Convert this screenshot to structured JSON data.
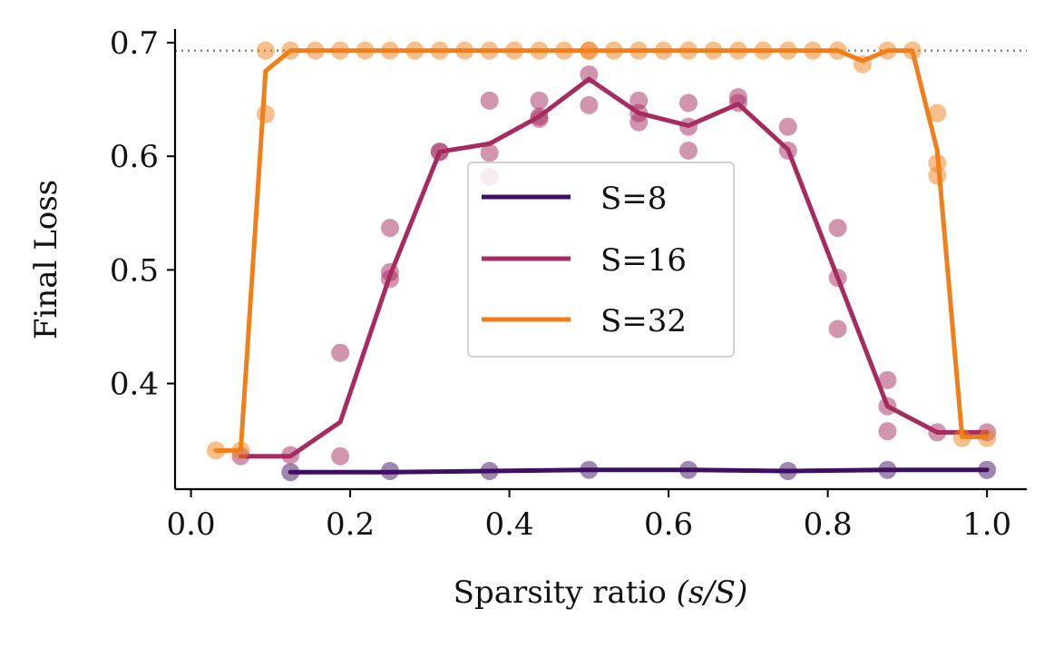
{
  "chart_data": {
    "type": "line",
    "title": "",
    "xlabel": "Sparsity ratio ",
    "xlabel_math": "(s/S)",
    "ylabel": "Final Loss",
    "xlim": [
      -0.02,
      1.05
    ],
    "ylim": [
      0.307,
      0.712
    ],
    "x_ticks": [
      0.0,
      0.2,
      0.4,
      0.6,
      0.8,
      1.0
    ],
    "x_tick_labels": [
      "0.0",
      "0.2",
      "0.4",
      "0.6",
      "0.8",
      "1.0"
    ],
    "y_ticks": [
      0.4,
      0.5,
      0.6,
      0.7
    ],
    "y_tick_labels": [
      "0.4",
      "0.5",
      "0.6",
      "0.7"
    ],
    "reference_line": {
      "y": 0.693,
      "style": "dotted",
      "color": "#808080"
    },
    "grid": false,
    "legend_position": "center",
    "series": [
      {
        "name": "S=8",
        "color": "#3e0f63",
        "line": {
          "x": [
            0.125,
            0.25,
            0.375,
            0.5,
            0.625,
            0.75,
            0.875,
            1.0
          ],
          "y": [
            0.322,
            0.322,
            0.323,
            0.324,
            0.324,
            0.323,
            0.324,
            0.324
          ]
        },
        "points": {
          "x": [
            0.125,
            0.25,
            0.375,
            0.5,
            0.625,
            0.75,
            0.875,
            1.0
          ],
          "y": [
            0.322,
            0.323,
            0.323,
            0.324,
            0.324,
            0.323,
            0.324,
            0.324
          ]
        }
      },
      {
        "name": "S=16",
        "color": "#a62b61",
        "line": {
          "x": [
            0.0625,
            0.125,
            0.1875,
            0.25,
            0.3125,
            0.375,
            0.4375,
            0.5,
            0.5625,
            0.625,
            0.6875,
            0.75,
            0.8125,
            0.875,
            0.9375,
            1.0
          ],
          "y": [
            0.336,
            0.336,
            0.366,
            0.495,
            0.604,
            0.611,
            0.635,
            0.668,
            0.638,
            0.627,
            0.646,
            0.606,
            0.493,
            0.38,
            0.357,
            0.357
          ]
        },
        "points": {
          "x": [
            0.0625,
            0.125,
            0.1875,
            0.1875,
            0.25,
            0.25,
            0.25,
            0.3125,
            0.3125,
            0.375,
            0.375,
            0.375,
            0.4375,
            0.4375,
            0.4375,
            0.5,
            0.5,
            0.5625,
            0.5625,
            0.5625,
            0.625,
            0.625,
            0.625,
            0.6875,
            0.6875,
            0.75,
            0.75,
            0.8125,
            0.8125,
            0.8125,
            0.875,
            0.875,
            0.875,
            0.9375,
            1.0
          ],
          "y": [
            0.336,
            0.337,
            0.427,
            0.336,
            0.537,
            0.498,
            0.492,
            0.604,
            0.604,
            0.649,
            0.603,
            0.582,
            0.649,
            0.635,
            0.633,
            0.672,
            0.645,
            0.649,
            0.638,
            0.63,
            0.647,
            0.626,
            0.605,
            0.652,
            0.647,
            0.626,
            0.605,
            0.537,
            0.493,
            0.448,
            0.403,
            0.38,
            0.358,
            0.357,
            0.357
          ]
        }
      },
      {
        "name": "S=32",
        "color": "#f07f19",
        "line": {
          "x": [
            0.03125,
            0.0625,
            0.09375,
            0.125,
            0.15625,
            0.1875,
            0.21875,
            0.25,
            0.28125,
            0.3125,
            0.34375,
            0.375,
            0.40625,
            0.4375,
            0.46875,
            0.5,
            0.53125,
            0.5625,
            0.59375,
            0.625,
            0.65625,
            0.6875,
            0.71875,
            0.75,
            0.78125,
            0.8125,
            0.84375,
            0.875,
            0.90625,
            0.9375,
            0.96875,
            1.0
          ],
          "y": [
            0.341,
            0.341,
            0.675,
            0.693,
            0.693,
            0.693,
            0.693,
            0.693,
            0.693,
            0.693,
            0.693,
            0.693,
            0.693,
            0.693,
            0.693,
            0.693,
            0.693,
            0.693,
            0.693,
            0.693,
            0.693,
            0.693,
            0.693,
            0.693,
            0.693,
            0.693,
            0.684,
            0.693,
            0.693,
            0.605,
            0.353,
            0.353
          ]
        },
        "points": {
          "x": [
            0.03125,
            0.0625,
            0.09375,
            0.09375,
            0.125,
            0.15625,
            0.1875,
            0.21875,
            0.25,
            0.28125,
            0.3125,
            0.34375,
            0.375,
            0.40625,
            0.4375,
            0.46875,
            0.5,
            0.5,
            0.53125,
            0.5625,
            0.59375,
            0.625,
            0.65625,
            0.6875,
            0.71875,
            0.75,
            0.78125,
            0.8125,
            0.84375,
            0.875,
            0.90625,
            0.9375,
            0.9375,
            0.9375,
            0.96875,
            1.0
          ],
          "y": [
            0.341,
            0.341,
            0.693,
            0.637,
            0.693,
            0.693,
            0.693,
            0.693,
            0.693,
            0.693,
            0.693,
            0.693,
            0.693,
            0.693,
            0.693,
            0.693,
            0.693,
            0.693,
            0.693,
            0.693,
            0.693,
            0.693,
            0.693,
            0.693,
            0.693,
            0.693,
            0.693,
            0.693,
            0.681,
            0.693,
            0.693,
            0.638,
            0.594,
            0.583,
            0.352,
            0.352
          ]
        }
      }
    ]
  }
}
